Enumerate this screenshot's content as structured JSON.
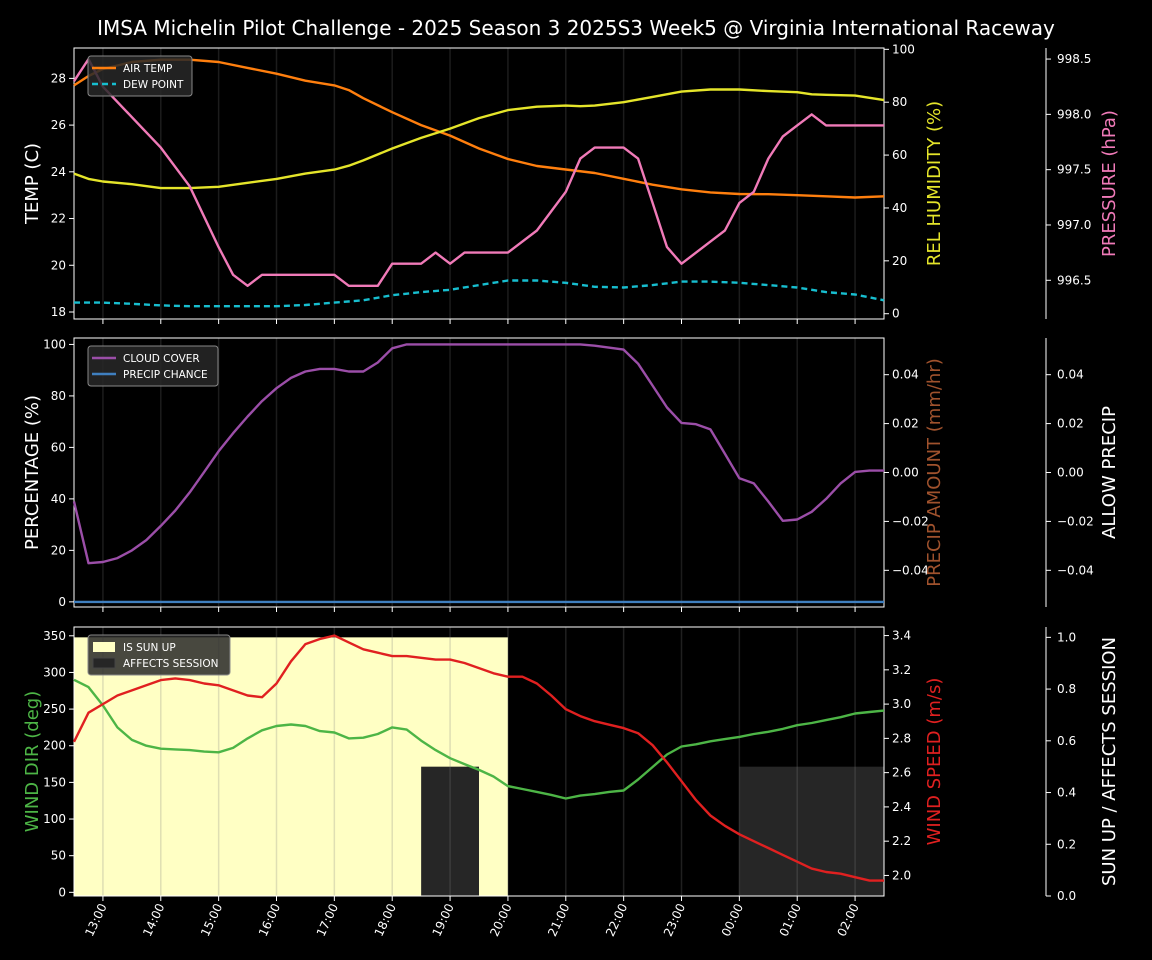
{
  "chart_data": {
    "type": "line",
    "title": "IMSA Michelin Pilot Challenge - 2025 Season 3 2025S3 Week5 @ Virginia International Raceway",
    "x_tick_labels": [
      "13:00",
      "14:00",
      "15:00",
      "16:00",
      "17:00",
      "18:00",
      "19:00",
      "20:00",
      "21:00",
      "22:00",
      "23:00",
      "00:00",
      "01:00",
      "02:00"
    ],
    "x_range_hours": [
      12.5,
      26.5
    ],
    "panels": [
      {
        "name": "temperature",
        "ylabel": "TEMP (C)",
        "ylim": [
          17.7,
          29.3
        ],
        "yticks": [
          18,
          20,
          22,
          24,
          26,
          28
        ],
        "right_ylabel": "REL HUMIDITY (%)",
        "right_ylim": [
          -2,
          100.5
        ],
        "right_yticks": [
          0,
          20,
          40,
          60,
          80,
          100
        ],
        "far_ylabel": "PRESSURE (hPa)",
        "far_ylim": [
          996.15,
          998.6
        ],
        "far_yticks": [
          "996.5",
          "997.0",
          "997.5",
          "998.0",
          "998.5"
        ],
        "legend": [
          "AIR TEMP",
          "DEW POINT"
        ],
        "legend_position": "top-left",
        "colors": {
          "air_temp": "#ff7f0e",
          "dew_point": "#17becf",
          "humidity": "#e5e52a",
          "pressure": "#f07ab8"
        },
        "series": [
          {
            "name": "AIR TEMP",
            "axis": "left",
            "x": [
              12.5,
              12.75,
              13,
              13.5,
              14,
              14.5,
              15,
              15.5,
              16,
              16.5,
              17,
              17.25,
              17.5,
              18,
              18.5,
              19,
              19.5,
              20,
              20.5,
              21,
              21.5,
              22,
              22.5,
              23,
              23.5,
              24,
              24.5,
              25,
              25.5,
              26,
              26.5
            ],
            "y": [
              27.7,
              28.1,
              28.4,
              28.7,
              28.8,
              28.8,
              28.7,
              28.45,
              28.2,
              27.9,
              27.7,
              27.5,
              27.15,
              26.55,
              26.0,
              25.55,
              25.0,
              24.55,
              24.25,
              24.1,
              23.95,
              23.7,
              23.45,
              23.25,
              23.12,
              23.05,
              23.04,
              23.0,
              22.95,
              22.9,
              22.95
            ]
          },
          {
            "name": "DEW POINT",
            "axis": "left",
            "dashed": true,
            "x": [
              12.5,
              13,
              13.5,
              14,
              14.5,
              15,
              15.5,
              16,
              16.5,
              17,
              17.5,
              18,
              18.5,
              19,
              19.5,
              20,
              20.5,
              21,
              21.5,
              22,
              22.5,
              23,
              23.5,
              24,
              24.5,
              25,
              25.5,
              26,
              26.5
            ],
            "y": [
              18.4,
              18.4,
              18.35,
              18.28,
              18.25,
              18.25,
              18.25,
              18.25,
              18.3,
              18.4,
              18.5,
              18.72,
              18.85,
              18.95,
              19.15,
              19.35,
              19.35,
              19.25,
              19.08,
              19.05,
              19.15,
              19.3,
              19.3,
              19.25,
              19.15,
              19.05,
              18.85,
              18.75,
              18.5
            ]
          },
          {
            "name": "REL HUMIDITY",
            "axis": "right",
            "x": [
              12.5,
              12.75,
              13,
              13.5,
              14,
              14.5,
              15,
              15.5,
              16,
              16.5,
              17,
              17.25,
              17.5,
              18,
              18.5,
              19,
              19.5,
              20,
              20.5,
              21,
              21.25,
              21.5,
              22,
              22.5,
              23,
              23.5,
              24,
              24.5,
              25,
              25.25,
              25.5,
              26,
              26.5
            ],
            "y": [
              53,
              51,
              50,
              49,
              47.5,
              47.5,
              48,
              49.5,
              51,
              53,
              54.5,
              56,
              58,
              62.5,
              66.5,
              70,
              74,
              77,
              78.3,
              78.7,
              78.5,
              78.7,
              80,
              82,
              84,
              84.8,
              84.8,
              84.2,
              83.8,
              83,
              82.8,
              82.5,
              80.8
            ]
          },
          {
            "name": "PRESSURE",
            "axis": "far",
            "x": [
              12.5,
              12.75,
              13,
              14,
              14.5,
              15,
              15.25,
              15.5,
              15.75,
              16,
              16.5,
              17,
              17.25,
              17.5,
              17.75,
              18,
              18.5,
              18.75,
              19,
              19.25,
              19.5,
              20,
              20.5,
              21,
              21.25,
              21.5,
              22,
              22.25,
              22.5,
              22.75,
              23,
              23.5,
              23.75,
              24,
              24.25,
              24.5,
              24.75,
              25,
              25.25,
              25.5,
              26,
              26.5
            ],
            "y": [
              998.3,
              998.5,
              998.25,
              997.7,
              997.35,
              996.8,
              996.55,
              996.45,
              996.55,
              996.55,
              996.55,
              996.55,
              996.45,
              996.45,
              996.45,
              996.65,
              996.65,
              996.75,
              996.65,
              996.75,
              996.75,
              996.75,
              996.95,
              997.3,
              997.6,
              997.7,
              997.7,
              997.6,
              997.2,
              996.8,
              996.65,
              996.85,
              996.95,
              997.2,
              997.3,
              997.6,
              997.8,
              997.9,
              998.0,
              997.9,
              997.9,
              997.9
            ]
          }
        ]
      },
      {
        "name": "precipitation",
        "ylabel": "PERCENTAGE (%)",
        "ylim": [
          -2,
          102.5
        ],
        "yticks": [
          0,
          20,
          40,
          60,
          80,
          100
        ],
        "right_ylabel": "PRECIP AMOUNT (mm/hr)",
        "right_ylim": [
          -0.055,
          0.055
        ],
        "right_yticks": [
          "−0.04",
          "−0.02",
          "0.00",
          "0.02",
          "0.04"
        ],
        "far_ylabel": "ALLOW PRECIP",
        "far_ylim": [
          -0.055,
          0.055
        ],
        "far_yticks": [
          "−0.04",
          "−0.02",
          "0.00",
          "0.02",
          "0.04"
        ],
        "legend": [
          "CLOUD COVER",
          "PRECIP CHANCE"
        ],
        "legend_position": "top-left",
        "colors": {
          "cloud_cover": "#9b4ea8",
          "precip_chance": "#3f7fbf",
          "precip_amount": "#a0522d"
        },
        "series": [
          {
            "name": "CLOUD COVER",
            "x": [
              12.5,
              12.75,
              13,
              13.25,
              13.5,
              13.75,
              14,
              14.25,
              14.5,
              14.75,
              15,
              15.25,
              15.5,
              15.75,
              16,
              16.25,
              16.5,
              16.75,
              17,
              17.25,
              17.5,
              17.75,
              18,
              18.25,
              18.5,
              19,
              19.5,
              20,
              20.5,
              21,
              21.25,
              21.5,
              22,
              22.25,
              22.5,
              22.75,
              23,
              23.25,
              23.5,
              23.75,
              24,
              24.25,
              24.5,
              24.75,
              25,
              25.25,
              25.5,
              25.75,
              26,
              26.25,
              26.5
            ],
            "y": [
              39,
              15,
              15.5,
              17,
              20,
              24,
              29.5,
              35.5,
              42.5,
              50.5,
              58.5,
              65.5,
              72,
              78,
              83,
              87,
              89.5,
              90.5,
              90.5,
              89.5,
              89.5,
              93,
              98.5,
              100,
              100,
              100,
              100,
              100,
              100,
              100,
              100,
              99.5,
              98,
              92.5,
              84,
              75.5,
              69.5,
              69,
              67,
              57.5,
              48,
              46,
              39,
              31.5,
              32,
              35,
              40,
              46,
              50.5,
              51,
              51
            ]
          },
          {
            "name": "PRECIP CHANCE",
            "x": [
              12.5,
              26.5
            ],
            "y": [
              0,
              0
            ]
          }
        ]
      },
      {
        "name": "wind",
        "ylabel": "WIND DIR (deg)",
        "ylim": [
          -5,
          362
        ],
        "yticks": [
          0,
          50,
          100,
          150,
          200,
          250,
          300,
          350
        ],
        "right_ylabel": "WIND SPEED (m/s)",
        "right_ylim": [
          1.88,
          3.45
        ],
        "right_yticks": [
          "2.0",
          "2.2",
          "2.4",
          "2.6",
          "2.8",
          "3.0",
          "3.2",
          "3.4"
        ],
        "far_ylabel": "SUN UP / AFFECTS SESSION",
        "far_ylim": [
          0,
          1.04
        ],
        "far_yticks": [
          "0.0",
          "0.2",
          "0.4",
          "0.6",
          "0.8",
          "1.0"
        ],
        "legend": [
          "IS SUN UP",
          "AFFECTS SESSION"
        ],
        "legend_position": "top-left",
        "colors": {
          "wind_dir": "#4db546",
          "wind_speed": "#e02020",
          "sun_up": "#ffffc4",
          "affects_session": "#262626"
        },
        "sun_up_periods": [
          {
            "start": 12.5,
            "end": 20.0,
            "value": 1.0
          }
        ],
        "affects_session_periods": [
          {
            "start": 18.5,
            "end": 19.5,
            "value": 0.5
          },
          {
            "start": 24.0,
            "end": 26.5,
            "value": 0.5
          }
        ],
        "series": [
          {
            "name": "WIND DIR",
            "x": [
              12.5,
              12.75,
              13,
              13.25,
              13.5,
              13.75,
              14,
              14.25,
              14.5,
              14.75,
              15,
              15.25,
              15.5,
              15.75,
              16,
              16.25,
              16.5,
              16.75,
              17,
              17.25,
              17.5,
              17.75,
              18,
              18.25,
              18.5,
              18.75,
              19,
              19.25,
              19.5,
              19.75,
              20,
              20.25,
              20.5,
              20.75,
              21,
              21.25,
              21.5,
              21.75,
              22,
              22.25,
              22.5,
              22.75,
              23,
              23.25,
              23.5,
              23.75,
              24,
              24.25,
              24.5,
              24.75,
              25,
              25.25,
              25.5,
              25.75,
              26,
              26.25,
              26.5
            ],
            "y": [
              290,
              280,
              255,
              225,
              208,
              200,
              196,
              195,
              194,
              192,
              191,
              197,
              210,
              221,
              227,
              229,
              227,
              220,
              218,
              210,
              211,
              216,
              225,
              222,
              207,
              194,
              183,
              175,
              167,
              158,
              145,
              141,
              137,
              133,
              128,
              132,
              134,
              137,
              139,
              154,
              171,
              188,
              199,
              202,
              206,
              209,
              212,
              216,
              219,
              223,
              228,
              231,
              235,
              239,
              244,
              246,
              248
            ]
          },
          {
            "name": "WIND SPEED",
            "x": [
              12.5,
              12.75,
              13,
              13.25,
              13.5,
              13.75,
              14,
              14.25,
              14.5,
              14.75,
              15,
              15.25,
              15.5,
              15.75,
              16,
              16.25,
              16.5,
              16.75,
              17,
              17.25,
              17.5,
              17.75,
              18,
              18.25,
              18.5,
              18.75,
              19,
              19.25,
              19.5,
              19.75,
              20,
              20.25,
              20.5,
              20.75,
              21,
              21.25,
              21.5,
              21.75,
              22,
              22.25,
              22.5,
              22.75,
              23,
              23.25,
              23.5,
              23.75,
              24,
              24.25,
              24.5,
              24.75,
              25,
              25.25,
              25.5,
              25.75,
              26,
              26.25,
              26.5
            ],
            "y": [
              2.78,
              2.95,
              3.0,
              3.05,
              3.08,
              3.11,
              3.14,
              3.15,
              3.14,
              3.12,
              3.11,
              3.08,
              3.05,
              3.04,
              3.12,
              3.25,
              3.35,
              3.38,
              3.4,
              3.36,
              3.32,
              3.3,
              3.28,
              3.28,
              3.27,
              3.26,
              3.26,
              3.24,
              3.21,
              3.18,
              3.16,
              3.16,
              3.12,
              3.05,
              2.97,
              2.93,
              2.9,
              2.88,
              2.86,
              2.83,
              2.76,
              2.66,
              2.55,
              2.44,
              2.35,
              2.29,
              2.24,
              2.2,
              2.16,
              2.12,
              2.08,
              2.04,
              2.02,
              2.01,
              1.99,
              1.97,
              1.97
            ]
          }
        ]
      }
    ]
  }
}
